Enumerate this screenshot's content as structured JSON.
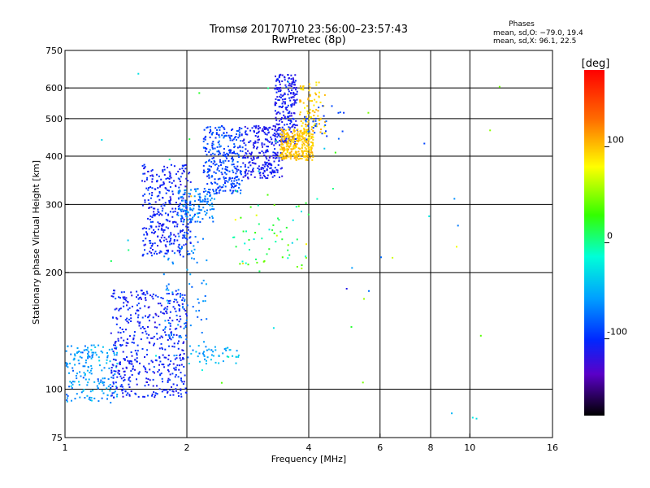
{
  "chart_data": {
    "type": "scatter",
    "title": "Tromsø 20170710 23:56:00–23:57:43",
    "subtitle": "RwPretec (8p)",
    "xlabel": "Frequency [MHz]",
    "ylabel": "Stationary phase Virtual Height [km]",
    "xscale": "log",
    "yscale": "log",
    "xlim": [
      1,
      16
    ],
    "ylim": [
      75,
      750
    ],
    "x_ticks": [
      1,
      2,
      4,
      6,
      8,
      10,
      16
    ],
    "y_ticks": [
      75,
      100,
      200,
      300,
      400,
      500,
      600,
      750
    ],
    "grid_x": [
      2,
      4,
      6,
      8,
      10
    ],
    "grid_y": [
      100,
      200,
      300,
      400,
      500,
      600
    ],
    "grid": true,
    "color_variable": "Phase [deg]",
    "colorbar": {
      "label": "[deg]",
      "range": [
        -180,
        180
      ],
      "ticks": [
        100,
        0,
        -100
      ]
    },
    "legend": {
      "title": "Phases",
      "lines": [
        "mean, sd,O: −79.0, 19.4",
        "mean, sd,X:  96.1, 22.5"
      ],
      "placement": "top-right"
    },
    "clusters": [
      {
        "xmin": 1.0,
        "xmax": 1.35,
        "ymin": 92,
        "ymax": 130,
        "phase": -60,
        "spread": 40,
        "n": 180
      },
      {
        "xmin": 1.3,
        "xmax": 2.0,
        "ymin": 95,
        "ymax": 180,
        "phase": -105,
        "spread": 25,
        "n": 480
      },
      {
        "xmin": 1.55,
        "xmax": 2.05,
        "ymin": 220,
        "ymax": 380,
        "phase": -105,
        "spread": 25,
        "n": 340
      },
      {
        "xmin": 1.75,
        "xmax": 2.25,
        "ymin": 120,
        "ymax": 250,
        "phase": -70,
        "spread": 30,
        "n": 90
      },
      {
        "xmin": 1.9,
        "xmax": 2.35,
        "ymin": 270,
        "ymax": 330,
        "phase": -70,
        "spread": 35,
        "n": 130
      },
      {
        "xmin": 2.0,
        "xmax": 2.7,
        "ymin": 115,
        "ymax": 130,
        "phase": -50,
        "spread": 30,
        "n": 45
      },
      {
        "xmin": 2.2,
        "xmax": 2.75,
        "ymin": 320,
        "ymax": 480,
        "phase": -90,
        "spread": 30,
        "n": 300
      },
      {
        "xmin": 2.75,
        "xmax": 3.45,
        "ymin": 350,
        "ymax": 480,
        "phase": -110,
        "spread": 20,
        "n": 260
      },
      {
        "xmin": 3.3,
        "xmax": 3.75,
        "ymin": 430,
        "ymax": 650,
        "phase": -110,
        "spread": 20,
        "n": 220
      },
      {
        "xmin": 3.4,
        "xmax": 4.1,
        "ymin": 390,
        "ymax": 470,
        "phase": 100,
        "spread": 20,
        "n": 300
      },
      {
        "xmin": 3.8,
        "xmax": 4.4,
        "ymin": 440,
        "ymax": 620,
        "phase": 95,
        "spread": 25,
        "n": 90
      },
      {
        "xmin": 3.9,
        "xmax": 4.9,
        "ymin": 440,
        "ymax": 540,
        "phase": -90,
        "spread": 20,
        "n": 30
      },
      {
        "xmin": 2.6,
        "xmax": 4.0,
        "ymin": 200,
        "ymax": 330,
        "phase": 20,
        "spread": 90,
        "n": 60
      },
      {
        "xmin": 1.0,
        "xmax": 13.0,
        "ymin": 80,
        "ymax": 700,
        "phase": 0,
        "spread": 150,
        "n": 45
      }
    ]
  },
  "colors": {
    "axis": "#000000",
    "background": "#ffffff",
    "grid": "#000000"
  }
}
